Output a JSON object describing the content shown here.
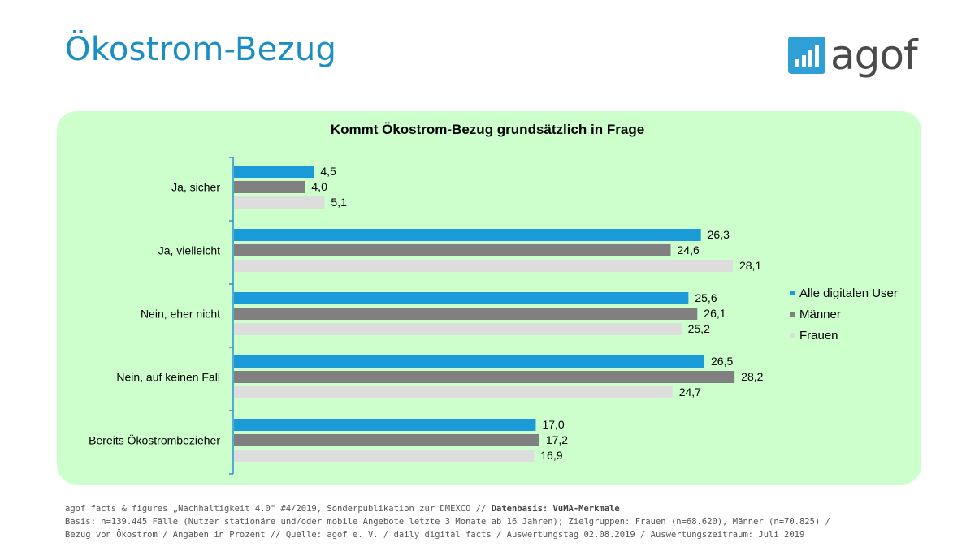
{
  "header": {
    "title": "Ökostrom-Bezug",
    "logo_text": "agof"
  },
  "colors": {
    "title": "#1b8fc2",
    "panel": "#ccffcc",
    "axis": "#2f8fd0",
    "series": [
      "#1a9ad6",
      "#808080",
      "#dddddd"
    ]
  },
  "chart_data": {
    "type": "bar",
    "orientation": "horizontal",
    "title": "Kommt Ökostrom-Bezug grundsätzlich in Frage",
    "categories": [
      "Ja, sicher",
      "Ja, vielleicht",
      "Nein, eher nicht",
      "Nein, auf keinen Fall",
      "Bereits Ökostrombezieher"
    ],
    "series": [
      {
        "name": "Alle digitalen User",
        "values": [
          4.5,
          26.3,
          25.6,
          26.5,
          17.0
        ],
        "labels": [
          "4,5",
          "26,3",
          "25,6",
          "26,5",
          "17,0"
        ]
      },
      {
        "name": "Männer",
        "values": [
          4.0,
          24.6,
          26.1,
          28.2,
          17.2
        ],
        "labels": [
          "4,0",
          "24,6",
          "26,1",
          "28,2",
          "17,2"
        ]
      },
      {
        "name": "Frauen",
        "values": [
          5.1,
          28.1,
          25.2,
          24.7,
          16.9
        ],
        "labels": [
          "5,1",
          "28,1",
          "25,2",
          "24,7",
          "16,9"
        ]
      }
    ],
    "xlim": [
      0,
      30
    ],
    "grid": false,
    "legend": "right"
  },
  "footer": {
    "line1": "agof facts & figures „Nachhaltigkeit 4.0\" #4/2019, Sonderpublikation zur DMEXCO // ",
    "line1_bold": "Datenbasis: VuMA-Merkmale",
    "line2": "Basis: n=139.445 Fälle (Nutzer stationäre und/oder mobile Angebote letzte 3 Monate ab 16 Jahren); Zielgruppen: Frauen (n=68.620), Männer (n=70.825) /",
    "line3": "Bezug von Ökostrom / Angaben in Prozent // Quelle: agof e. V. / daily digital facts / Auswertungstag 02.08.2019 / Auswertungszeitraum: Juli 2019"
  }
}
